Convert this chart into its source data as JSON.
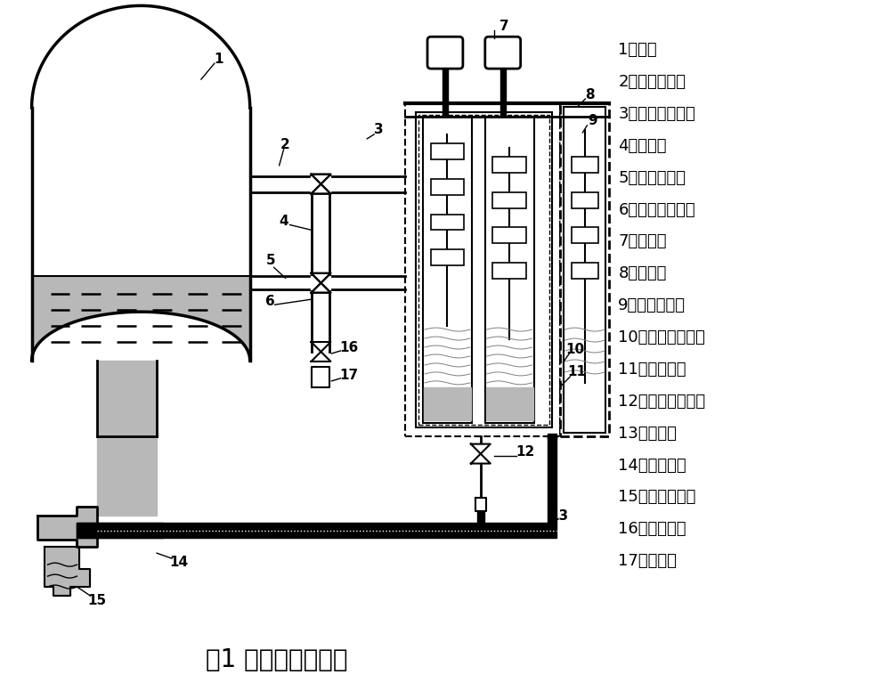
{
  "title": "图1 气泡水位示例图",
  "legend_items": [
    "1、汽包",
    "2、汽测取样管",
    "3、汽侧取样阀门",
    "4、平衡管",
    "5、水侧取样管",
    "6、水侧取样阀门",
    "7、冷凝罐",
    "8、光源筱",
    "9、水位计表体",
    "10、饱和汽伴热管",
    "11、测量水柱",
    "12、补偿调节阀门",
    "13、排水管",
    "14、排水阀门",
    "15、汽包下降管",
    "16、排污阀门",
    "17、排污管"
  ],
  "bg_color": "#ffffff",
  "line_color": "#000000",
  "water_fill_color": "#b8b8b8",
  "title_fontsize": 20,
  "legend_fontsize": 13
}
